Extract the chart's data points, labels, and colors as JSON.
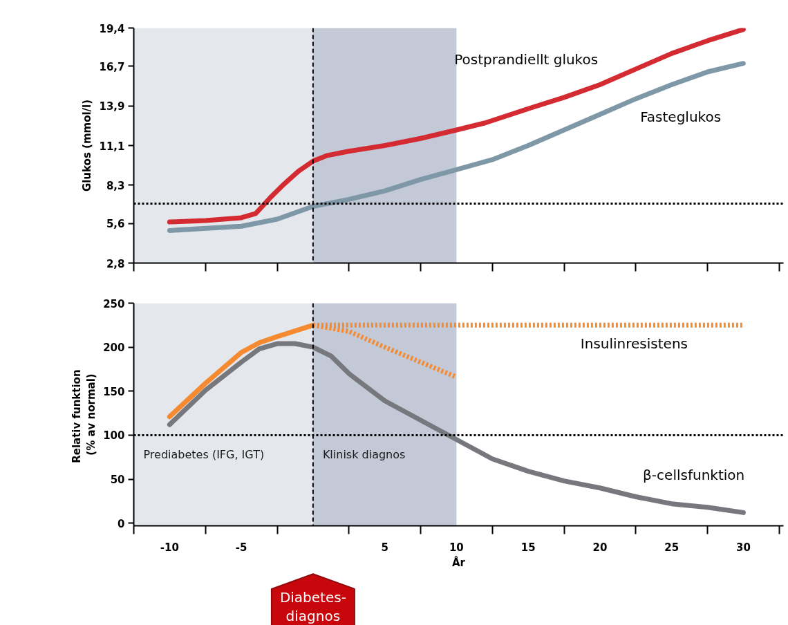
{
  "chart_data": [
    {
      "type": "line",
      "ylabel": "Glukos (mmol/l)",
      "xlim": [
        -12.5,
        32.8
      ],
      "ylim": [
        2.8,
        19.4
      ],
      "xticks": [
        {
          "value": -12.5,
          "label": null
        },
        {
          "value": -7.5,
          "label": null
        },
        {
          "value": -2.5,
          "label": null
        },
        {
          "value": 2.5,
          "label": null
        },
        {
          "value": 7.5,
          "label": null
        },
        {
          "value": 12.5,
          "label": null
        },
        {
          "value": 17.5,
          "label": null
        },
        {
          "value": 22.5,
          "label": null
        },
        {
          "value": 27.5,
          "label": null
        },
        {
          "value": 32.5,
          "label": null
        }
      ],
      "yticks": [
        {
          "value": 2.8,
          "label": "2,8"
        },
        {
          "value": 5.6,
          "label": "5,6"
        },
        {
          "value": 8.3,
          "label": "8,3"
        },
        {
          "value": 11.1,
          "label": "11,1"
        },
        {
          "value": 13.9,
          "label": "13,9"
        },
        {
          "value": 16.7,
          "label": "16,7"
        },
        {
          "value": 19.4,
          "label": "19,4"
        }
      ],
      "tick_labels": "y",
      "grid": false,
      "line_style": "solid",
      "series": [
        {
          "name": "Postprandiellt glukos",
          "color": "#d42a32",
          "x": [
            -10,
            -7.5,
            -5,
            -4,
            -3,
            -2,
            -1,
            0,
            1,
            2.5,
            5,
            7.5,
            10,
            12,
            15,
            17.5,
            20,
            22.5,
            25,
            27.5,
            30
          ],
          "values": [
            5.7,
            5.8,
            6.0,
            6.3,
            7.4,
            8.4,
            9.3,
            10.0,
            10.4,
            10.7,
            11.1,
            11.6,
            12.2,
            12.7,
            13.7,
            14.5,
            15.4,
            16.5,
            17.6,
            18.5,
            19.3
          ]
        },
        {
          "name": "Fasteglukos",
          "color": "#7f98a8",
          "x": [
            -10,
            -5,
            -2.5,
            0,
            2.5,
            5,
            7.5,
            10,
            12.5,
            15,
            17.5,
            20,
            22.5,
            25,
            27.5,
            30
          ],
          "values": [
            5.1,
            5.4,
            5.9,
            6.8,
            7.3,
            7.9,
            8.7,
            9.4,
            10.1,
            11.1,
            12.2,
            13.3,
            14.4,
            15.4,
            16.3,
            16.9
          ]
        }
      ],
      "ref_lines": [
        {
          "axis": "y",
          "value": 7.0,
          "color": "#000000",
          "line_style": "dotted"
        },
        {
          "axis": "x",
          "value": 0,
          "color": "#000000",
          "line_style": "dashed"
        }
      ],
      "bands": [
        {
          "axis": "x",
          "from": -12.5,
          "to": 0,
          "color": "#e4e7ec"
        },
        {
          "axis": "x",
          "from": 0,
          "to": 10,
          "color": "#c3c9d6"
        }
      ]
    },
    {
      "type": "line",
      "xlabel": "År",
      "ylabel": "Relativ  funktion\n(% av normal)",
      "xlim": [
        -12.5,
        32.8
      ],
      "ylim": [
        -3,
        250
      ],
      "xticks": [
        -10,
        -5,
        5,
        10,
        15,
        20,
        25,
        30,
        {
          "value": -12.5,
          "label": null
        },
        {
          "value": -7.5,
          "label": null
        },
        {
          "value": -2.5,
          "label": null
        },
        {
          "value": 2.5,
          "label": null
        },
        {
          "value": 7.5,
          "label": null
        },
        {
          "value": 12.5,
          "label": null
        },
        {
          "value": 17.5,
          "label": null
        },
        {
          "value": 22.5,
          "label": null
        },
        {
          "value": 27.5,
          "label": null
        },
        {
          "value": 32.5,
          "label": null
        }
      ],
      "yticks": [
        0,
        50,
        100,
        150,
        200,
        250
      ],
      "grid": false,
      "series": [
        {
          "color": "#f58a30",
          "line_style": "solid",
          "x": [
            -10,
            -7.5,
            -5,
            -3.75,
            -2.5,
            0
          ],
          "values": [
            121,
            159,
            194,
            205,
            212,
            225
          ]
        },
        {
          "name": "Insulinresistens",
          "color": "#f58a30",
          "line_style": "dotted",
          "x": [
            0,
            30
          ],
          "values": [
            225,
            225
          ]
        },
        {
          "color": "#f58a30",
          "line_style": "dotted",
          "x": [
            0,
            2.5,
            5,
            7.5,
            10
          ],
          "values": [
            225,
            218,
            200,
            183,
            166
          ]
        },
        {
          "name": "β-cellsfunktion",
          "color": "#77777e",
          "line_style": "solid",
          "x": [
            -10,
            -7.5,
            -5,
            -3.75,
            -2.5,
            -1.25,
            0,
            1.25,
            2.5,
            5,
            7.5,
            10,
            12.5,
            15,
            17.5,
            20,
            22.5,
            25,
            27.5,
            30
          ],
          "values": [
            112,
            151,
            183,
            198,
            204,
            204,
            200,
            190,
            170,
            139,
            117,
            95,
            73,
            59,
            48,
            40,
            30,
            22,
            18,
            12
          ]
        }
      ],
      "ref_lines": [
        {
          "axis": "y",
          "value": 100,
          "color": "#000000",
          "line_style": "dotted"
        },
        {
          "axis": "x",
          "value": 0,
          "color": "#000000",
          "line_style": "dashed"
        }
      ],
      "bands": [
        {
          "axis": "x",
          "from": -12.5,
          "to": 0,
          "color": "#e4e7ec",
          "label": "Prediabetes (IFG, IGT)"
        },
        {
          "axis": "x",
          "from": 0,
          "to": 10,
          "color": "#c3c9d6",
          "label": "Klinisk diagnos"
        }
      ],
      "annotations": [
        "Diabetes-\ndiagnos"
      ]
    }
  ]
}
